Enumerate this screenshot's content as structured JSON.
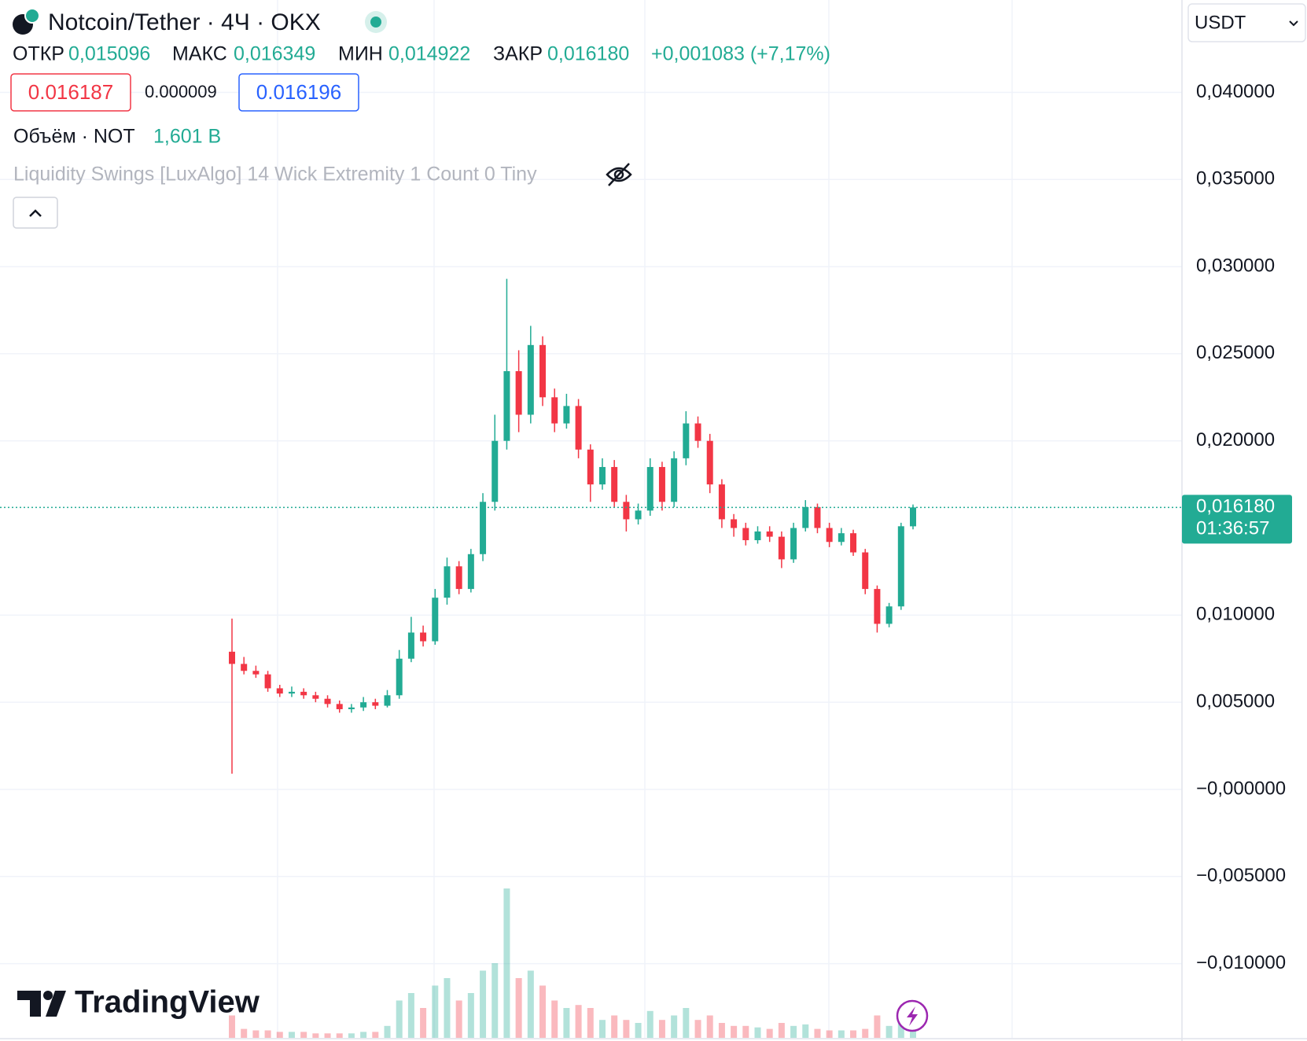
{
  "chart_data": {
    "type": "candlestick",
    "title": "Notcoin/Tether · 4Ч · OKX",
    "open": [
      0.0079,
      0.0072,
      0.0068,
      0.0066,
      0.0058,
      0.0055,
      0.0056,
      0.0054,
      0.0052,
      0.0049,
      0.0046,
      0.0047,
      0.005,
      0.0048,
      0.0054,
      0.0075,
      0.009,
      0.0085,
      0.011,
      0.0128,
      0.0115,
      0.0135,
      0.0165,
      0.02,
      0.024,
      0.0215,
      0.0255,
      0.0225,
      0.021,
      0.022,
      0.0195,
      0.0175,
      0.0185,
      0.0165,
      0.0155,
      0.016,
      0.0185,
      0.0165,
      0.019,
      0.021,
      0.02,
      0.0175,
      0.0155,
      0.015,
      0.0143,
      0.0148,
      0.0145,
      0.0132,
      0.015,
      0.0162,
      0.015,
      0.0142,
      0.0147,
      0.0136,
      0.0115,
      0.0095,
      0.0105,
      0.015096
    ],
    "high": [
      0.0098,
      0.0076,
      0.0071,
      0.0068,
      0.006,
      0.0059,
      0.0058,
      0.0056,
      0.0054,
      0.0051,
      0.0049,
      0.0053,
      0.0052,
      0.0057,
      0.008,
      0.0099,
      0.0094,
      0.0115,
      0.0133,
      0.0131,
      0.0138,
      0.017,
      0.0215,
      0.0293,
      0.0252,
      0.0266,
      0.026,
      0.023,
      0.0227,
      0.0224,
      0.0198,
      0.019,
      0.0189,
      0.0169,
      0.0164,
      0.019,
      0.0188,
      0.0194,
      0.0217,
      0.0214,
      0.0204,
      0.0178,
      0.0158,
      0.0153,
      0.0151,
      0.0151,
      0.0148,
      0.0153,
      0.0166,
      0.0164,
      0.0153,
      0.015,
      0.0149,
      0.0138,
      0.0117,
      0.0107,
      0.0153,
      0.016349
    ],
    "low": [
      0.0009,
      0.0066,
      0.0064,
      0.0056,
      0.0053,
      0.0053,
      0.0052,
      0.005,
      0.0047,
      0.0044,
      0.0044,
      0.0045,
      0.0046,
      0.0047,
      0.0052,
      0.0073,
      0.0082,
      0.0083,
      0.0106,
      0.0112,
      0.0113,
      0.0131,
      0.016,
      0.0195,
      0.0205,
      0.021,
      0.022,
      0.0205,
      0.0207,
      0.019,
      0.0165,
      0.0172,
      0.0162,
      0.0148,
      0.0152,
      0.0157,
      0.016,
      0.0162,
      0.0186,
      0.0196,
      0.017,
      0.015,
      0.0145,
      0.014,
      0.0141,
      0.0142,
      0.0127,
      0.013,
      0.0148,
      0.0147,
      0.0139,
      0.014,
      0.0134,
      0.0112,
      0.009,
      0.0093,
      0.0103,
      0.014922
    ],
    "close": [
      0.0072,
      0.0068,
      0.0066,
      0.0058,
      0.0055,
      0.0056,
      0.0054,
      0.0052,
      0.0049,
      0.0046,
      0.0047,
      0.005,
      0.0048,
      0.0054,
      0.0075,
      0.009,
      0.0085,
      0.011,
      0.0128,
      0.0115,
      0.0135,
      0.0165,
      0.02,
      0.024,
      0.0215,
      0.0255,
      0.0225,
      0.021,
      0.022,
      0.0195,
      0.0175,
      0.0185,
      0.0165,
      0.0155,
      0.016,
      0.0185,
      0.0165,
      0.019,
      0.021,
      0.02,
      0.0175,
      0.0155,
      0.015,
      0.0143,
      0.0148,
      0.0145,
      0.0132,
      0.015,
      0.0162,
      0.015,
      0.0142,
      0.0147,
      0.0136,
      0.0115,
      0.0095,
      0.0105,
      0.0151,
      0.01618
    ],
    "volume": [
      15,
      6,
      5,
      5,
      4,
      4,
      4,
      3,
      3,
      3,
      3,
      4,
      4,
      8,
      25,
      30,
      20,
      35,
      40,
      25,
      30,
      45,
      50,
      100,
      40,
      45,
      35,
      25,
      20,
      22,
      20,
      12,
      15,
      12,
      10,
      18,
      12,
      15,
      20,
      12,
      15,
      10,
      8,
      8,
      7,
      6,
      10,
      8,
      9,
      6,
      5,
      5,
      5,
      6,
      15,
      8,
      12,
      14
    ],
    "up_color": "#22ab94",
    "down_color": "#f23645",
    "ylim": [
      -0.01426,
      0.0453
    ],
    "yticks": [
      {
        "value": 0.04,
        "label": "0,040000"
      },
      {
        "value": 0.035,
        "label": "0,035000"
      },
      {
        "value": 0.03,
        "label": "0,030000"
      },
      {
        "value": 0.025,
        "label": "0,025000"
      },
      {
        "value": 0.02,
        "label": "0,020000"
      },
      {
        "value": 0.01,
        "label": "0,010000"
      },
      {
        "value": 0.005,
        "label": "0,005000"
      },
      {
        "value": 0,
        "label": "−0,000000"
      },
      {
        "value": -0.005,
        "label": "−0,005000"
      },
      {
        "value": -0.01,
        "label": "−0,010000"
      }
    ],
    "grid": true,
    "last_price": {
      "value": 0.01618,
      "label": "0,016180"
    },
    "countdown": "01:36:57"
  },
  "ui": {
    "ohlc": {
      "open_label": "ОТКР",
      "open": "0,015096",
      "high_label": "МАКС",
      "high": "0,016349",
      "low_label": "МИН",
      "low": "0,014922",
      "close_label": "ЗАКР",
      "close": "0,016180",
      "change": "+0,001083 (+7,17%)"
    },
    "bid": "0.016187",
    "spread": "0.000009",
    "ask": "0.016196",
    "volume_label": "Объём · NOT",
    "volume_value": "1,601 B",
    "indicator": "Liquidity Swings [LuxAlgo] 14 Wick Extremity 1 Count 0 Tiny",
    "currency": "USDT",
    "brand": "TradingView"
  }
}
